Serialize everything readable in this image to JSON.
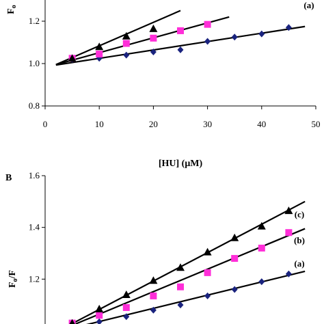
{
  "chart_data": [
    {
      "panel": "",
      "type": "scatter",
      "xlabel": "[HU] (μM)",
      "ylabel": "Fo/F",
      "ylabel_main": "F",
      "ylabel_sub": "o",
      "xlim": [
        0,
        50
      ],
      "ylim": [
        0.8,
        1.3
      ],
      "xticks": [
        "0",
        "10",
        "20",
        "30",
        "40",
        "50"
      ],
      "yticks": [
        "0.8",
        "1.0",
        "1.2"
      ],
      "series": [
        {
          "name": "(a)",
          "marker": "diamond",
          "color": "#1a237e",
          "x": [
            5,
            10,
            15,
            20,
            25,
            30,
            35,
            40,
            45
          ],
          "y": [
            1.02,
            1.025,
            1.04,
            1.055,
            1.065,
            1.105,
            1.125,
            1.14,
            1.17
          ],
          "fit": [
            [
              2,
              0.993
            ],
            [
              48,
              1.175
            ]
          ]
        },
        {
          "name": "(b)",
          "marker": "square",
          "color": "#ff2ed8",
          "x": [
            5,
            10,
            15,
            20,
            25,
            30
          ],
          "y": [
            1.025,
            1.045,
            1.095,
            1.12,
            1.155,
            1.185
          ],
          "fit": [
            [
              2,
              0.995
            ],
            [
              34,
              1.22
            ]
          ]
        },
        {
          "name": "(c)",
          "marker": "triangle",
          "color": "#000000",
          "x": [
            5,
            10,
            15,
            20
          ],
          "y": [
            1.025,
            1.08,
            1.13,
            1.165
          ],
          "fit": [
            [
              2,
              0.995
            ],
            [
              25,
              1.25
            ]
          ]
        }
      ]
    },
    {
      "panel": "B",
      "type": "scatter",
      "xlabel": "",
      "ylabel": "Fo/F",
      "ylabel_main": "F",
      "ylabel_sub": "o",
      "ylabel_tail": "/F",
      "xlim": [
        0,
        50
      ],
      "ylim": [
        1.0,
        1.6
      ],
      "yticks": [
        "1.2",
        "1.4",
        "1.6"
      ],
      "series": [
        {
          "name": "(a)",
          "marker": "diamond",
          "color": "#1a237e",
          "x": [
            5,
            10,
            15,
            20,
            25,
            30,
            35,
            40,
            45
          ],
          "y": [
            1.02,
            1.035,
            1.055,
            1.08,
            1.1,
            1.135,
            1.16,
            1.19,
            1.22
          ],
          "fit": [
            [
              2,
              0.995
            ],
            [
              48,
              1.23
            ]
          ]
        },
        {
          "name": "(b)",
          "marker": "square",
          "color": "#ff2ed8",
          "x": [
            5,
            10,
            15,
            20,
            25,
            30,
            35,
            40,
            45
          ],
          "y": [
            1.03,
            1.06,
            1.09,
            1.135,
            1.17,
            1.225,
            1.28,
            1.32,
            1.38
          ],
          "fit": [
            [
              2,
              0.995
            ],
            [
              48,
              1.395
            ]
          ]
        },
        {
          "name": "(c)",
          "marker": "triangle",
          "color": "#000000",
          "x": [
            5,
            10,
            15,
            20,
            25,
            30,
            35,
            40,
            45
          ],
          "y": [
            1.03,
            1.085,
            1.14,
            1.195,
            1.245,
            1.305,
            1.36,
            1.405,
            1.465
          ],
          "fit": [
            [
              2,
              0.995
            ],
            [
              48,
              1.5
            ]
          ]
        }
      ]
    }
  ]
}
